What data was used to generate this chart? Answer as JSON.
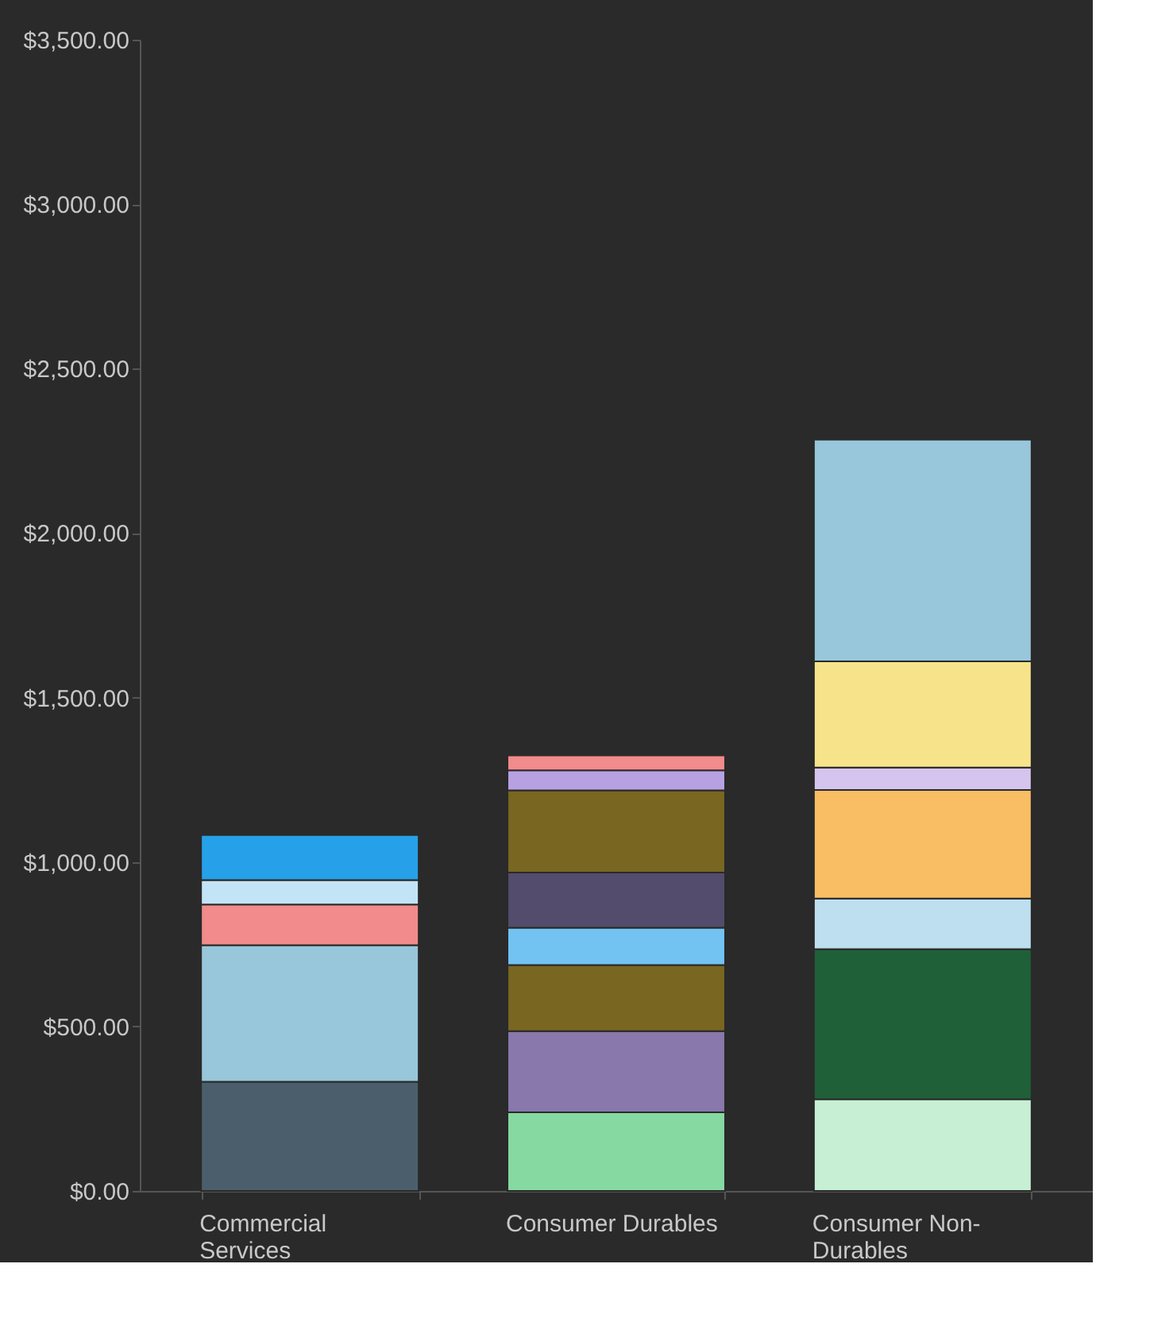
{
  "chart_data": {
    "type": "bar",
    "stacked": true,
    "categories": [
      "Commercial Services",
      "Consumer Durables",
      "Consumer Non-Durables"
    ],
    "series": [
      {
        "values": [
          332,
          239,
          279
        ],
        "colors": [
          "#4a5f6b",
          "#86d9a0",
          "#c7efd4"
        ]
      },
      {
        "values": [
          415,
          247,
          456
        ],
        "colors": [
          "#98c6da",
          "#8878ac",
          "#1f6038"
        ]
      },
      {
        "values": [
          124,
          201,
          154
        ],
        "colors": [
          "#f28b8b",
          "#786621",
          "#bddff0"
        ]
      },
      {
        "values": [
          74,
          113,
          330
        ],
        "colors": [
          "#c3e4f7",
          "#72c3f2",
          "#f9bd64"
        ]
      },
      {
        "values": [
          137,
          168,
          68
        ],
        "colors": [
          "#26a0e8",
          "#544c6c",
          "#d4c4ee"
        ]
      },
      {
        "values": [
          null,
          250,
          323
        ],
        "colors": [
          null,
          "#786621",
          "#f7e38a"
        ]
      },
      {
        "values": [
          null,
          61,
          674
        ],
        "colors": [
          null,
          "#b8a1e3",
          "#98c6da"
        ]
      },
      {
        "values": [
          null,
          45,
          null
        ],
        "colors": [
          null,
          "#f28b8b",
          null
        ]
      }
    ],
    "ylim": [
      0,
      3500
    ],
    "yticks": [
      {
        "value": 0,
        "label": "$0.00"
      },
      {
        "value": 500,
        "label": "$500.00"
      },
      {
        "value": 1000,
        "label": "$1,000.00"
      },
      {
        "value": 1500,
        "label": "$1,500.00"
      },
      {
        "value": 2000,
        "label": "$2,000.00"
      },
      {
        "value": 2500,
        "label": "$2,500.00"
      },
      {
        "value": 3000,
        "label": "$3,000.00"
      },
      {
        "value": 3500,
        "label": "$3,500.00"
      }
    ],
    "grid": false
  }
}
